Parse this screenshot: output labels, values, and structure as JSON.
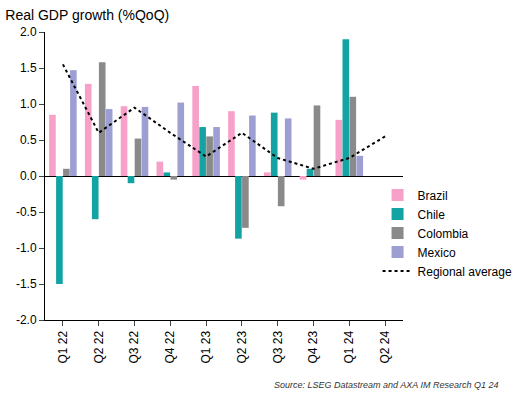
{
  "chart_data": {
    "type": "bar",
    "title": "Real GDP growth (%QoQ)",
    "annotations": [
      "Source: LSEG Datastream and AXA IM Research Q1 24"
    ],
    "categories": [
      "Q1 22",
      "Q2 22",
      "Q3 22",
      "Q4 22",
      "Q1 23",
      "Q2 23",
      "Q3 23",
      "Q4 23",
      "Q1 24",
      "Q2 24"
    ],
    "series": [
      {
        "name": "Brazil",
        "color": "#f7a1c9",
        "values": [
          0.85,
          1.28,
          0.97,
          0.2,
          1.25,
          0.9,
          0.05,
          -0.05,
          0.78,
          null
        ]
      },
      {
        "name": "Chile",
        "color": "#14a3a3",
        "values": [
          -1.5,
          -0.6,
          -0.1,
          0.05,
          0.68,
          -0.87,
          0.88,
          0.1,
          1.9,
          null
        ]
      },
      {
        "name": "Colombia",
        "color": "#8a8a8a",
        "values": [
          0.1,
          1.58,
          0.52,
          -0.05,
          0.55,
          -0.72,
          -0.42,
          0.98,
          1.1,
          null
        ]
      },
      {
        "name": "Mexico",
        "color": "#9d9fd3",
        "values": [
          1.47,
          0.93,
          0.96,
          1.02,
          0.68,
          0.84,
          0.8,
          0.0,
          0.28,
          null
        ]
      },
      {
        "name": "Regional average",
        "type": "line",
        "color": "#000000",
        "line_style": "dot",
        "values": [
          1.55,
          0.6,
          0.95,
          0.6,
          0.27,
          0.6,
          0.25,
          0.1,
          0.25,
          0.55
        ]
      }
    ],
    "ylim": [
      -2,
      2
    ],
    "yticks": [
      {
        "value": -2,
        "label": "-2.0"
      },
      -1.5,
      {
        "value": -1,
        "label": "-1.0"
      },
      -0.5,
      {
        "value": 0,
        "label": "0.0"
      },
      0.5,
      {
        "value": 1,
        "label": "1.0"
      },
      1.5,
      {
        "value": 2,
        "label": "2.0"
      }
    ],
    "grid": false,
    "legend": "lower right"
  }
}
